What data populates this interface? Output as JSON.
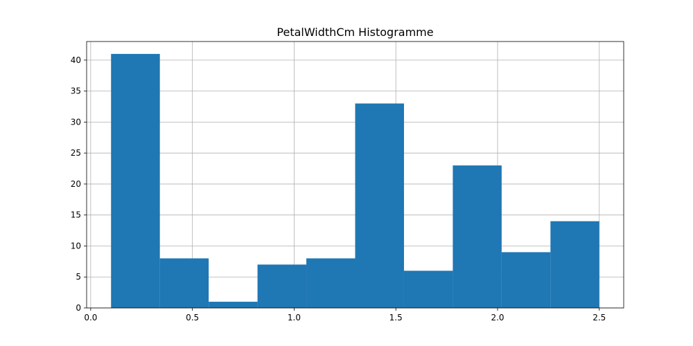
{
  "chart_data": {
    "type": "bar",
    "title": "PetalWidthCm Histogramme",
    "xlabel": "",
    "ylabel": "",
    "bin_edges": [
      0.1,
      0.34,
      0.58,
      0.82,
      1.06,
      1.3,
      1.54,
      1.78,
      2.02,
      2.26,
      2.5
    ],
    "values": [
      41,
      8,
      1,
      7,
      8,
      33,
      6,
      23,
      9,
      14
    ],
    "xlim": [
      -0.02,
      2.62
    ],
    "ylim": [
      0,
      43
    ],
    "xticks": [
      0.0,
      0.5,
      1.0,
      1.5,
      2.0,
      2.5
    ],
    "xtick_labels": [
      "0.0",
      "0.5",
      "1.0",
      "1.5",
      "2.0",
      "2.5"
    ],
    "yticks": [
      0,
      5,
      10,
      15,
      20,
      25,
      30,
      35,
      40
    ],
    "ytick_labels": [
      "0",
      "5",
      "10",
      "15",
      "20",
      "25",
      "30",
      "35",
      "40"
    ],
    "grid": true,
    "bar_color": "#1f77b4"
  }
}
